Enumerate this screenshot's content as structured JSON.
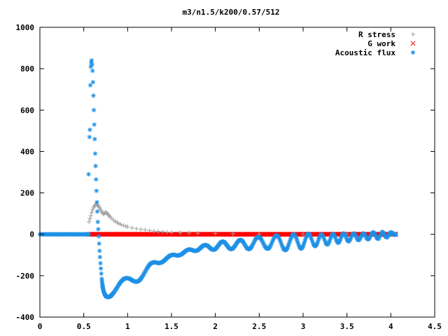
{
  "chart_data": {
    "type": "scatter",
    "title": "m3/n1.5/k200/0.57/512",
    "xlabel": "",
    "ylabel": "",
    "xlim": [
      0,
      4.5
    ],
    "ylim": [
      -400,
      1000
    ],
    "xticks": [
      0,
      0.5,
      1,
      1.5,
      2,
      2.5,
      3,
      3.5,
      4,
      4.5
    ],
    "xtick_labels": [
      "0",
      "0.5",
      "1",
      "1.5",
      "2",
      "2.5",
      "3",
      "3.5",
      "4",
      "4.5"
    ],
    "yticks": [
      -400,
      -200,
      0,
      200,
      400,
      600,
      800,
      1000
    ],
    "ytick_labels": [
      "-400",
      "-200",
      "0",
      "200",
      "400",
      "600",
      "800",
      "1000"
    ],
    "grid": false,
    "legend_position": "top-right",
    "series": [
      {
        "name": "R stress",
        "marker": "plus",
        "color": "#a0a0a0",
        "points": [
          [
            0.56,
            60
          ],
          [
            0.57,
            75
          ],
          [
            0.58,
            90
          ],
          [
            0.59,
            105
          ],
          [
            0.6,
            118
          ],
          [
            0.61,
            128
          ],
          [
            0.62,
            136
          ],
          [
            0.63,
            141
          ],
          [
            0.64,
            144
          ],
          [
            0.65,
            143
          ],
          [
            0.66,
            140
          ],
          [
            0.67,
            135
          ],
          [
            0.68,
            128
          ],
          [
            0.69,
            121
          ],
          [
            0.7,
            113
          ],
          [
            0.71,
            106
          ],
          [
            0.72,
            100
          ],
          [
            0.73,
            98
          ],
          [
            0.74,
            103
          ],
          [
            0.75,
            106
          ],
          [
            0.76,
            104
          ],
          [
            0.77,
            99
          ],
          [
            0.78,
            94
          ],
          [
            0.79,
            89
          ],
          [
            0.8,
            84
          ],
          [
            0.82,
            76
          ],
          [
            0.84,
            68
          ],
          [
            0.86,
            62
          ],
          [
            0.88,
            57
          ],
          [
            0.9,
            52
          ],
          [
            0.92,
            48
          ],
          [
            0.95,
            43
          ],
          [
            0.98,
            39
          ],
          [
            1.0,
            36
          ],
          [
            1.05,
            31
          ],
          [
            1.1,
            27
          ],
          [
            1.15,
            24
          ],
          [
            1.2,
            21
          ],
          [
            1.25,
            18
          ],
          [
            1.3,
            16
          ],
          [
            1.35,
            14
          ],
          [
            1.4,
            12
          ],
          [
            1.45,
            10
          ],
          [
            1.5,
            9
          ],
          [
            1.6,
            7
          ],
          [
            1.7,
            6
          ],
          [
            1.8,
            5
          ],
          [
            2.0,
            4
          ],
          [
            2.2,
            3
          ],
          [
            2.5,
            2
          ],
          [
            3.0,
            1
          ],
          [
            3.5,
            1
          ],
          [
            4.0,
            0
          ]
        ]
      },
      {
        "name": "G work",
        "marker": "cross",
        "color": "#ff0000",
        "x_range": [
          0.56,
          4.06
        ],
        "y": 0
      },
      {
        "name": "Acoustic flux",
        "marker": "star",
        "color": "#1e90e6",
        "baseline": {
          "x_range": [
            0.0,
            0.56
          ],
          "y": 0
        },
        "points": [
          [
            0.555,
            290
          ],
          [
            0.565,
            470
          ],
          [
            0.57,
            505
          ],
          [
            0.575,
            720
          ],
          [
            0.58,
            810
          ],
          [
            0.585,
            830
          ],
          [
            0.59,
            840
          ],
          [
            0.595,
            820
          ],
          [
            0.6,
            790
          ],
          [
            0.605,
            735
          ],
          [
            0.61,
            670
          ],
          [
            0.615,
            600
          ],
          [
            0.62,
            530
          ],
          [
            0.625,
            460
          ],
          [
            0.63,
            390
          ],
          [
            0.635,
            330
          ],
          [
            0.64,
            265
          ],
          [
            0.645,
            210
          ],
          [
            0.65,
            155
          ],
          [
            0.655,
            110
          ],
          [
            0.66,
            60
          ],
          [
            0.665,
            25
          ],
          [
            0.67,
            -10
          ],
          [
            0.675,
            -45
          ],
          [
            0.68,
            -80
          ],
          [
            0.685,
            -110
          ],
          [
            0.69,
            -140
          ],
          [
            0.695,
            -165
          ],
          [
            0.7,
            -190
          ],
          [
            0.705,
            -215
          ],
          [
            0.71,
            -235
          ],
          [
            0.715,
            -252
          ],
          [
            0.72,
            -265
          ],
          [
            0.73,
            -280
          ],
          [
            0.74,
            -290
          ],
          [
            0.75,
            -297
          ],
          [
            0.76,
            -301
          ],
          [
            0.77,
            -303
          ],
          [
            0.78,
            -303
          ],
          [
            0.79,
            -302
          ],
          [
            0.8,
            -300
          ],
          [
            0.81,
            -297
          ],
          [
            0.82,
            -292
          ],
          [
            0.84,
            -283
          ],
          [
            0.86,
            -270
          ],
          [
            0.88,
            -257
          ],
          [
            0.9,
            -243
          ],
          [
            0.92,
            -231
          ],
          [
            0.94,
            -222
          ],
          [
            0.96,
            -215
          ],
          [
            0.98,
            -212
          ],
          [
            1.0,
            -212
          ],
          [
            1.02,
            -214
          ],
          [
            1.04,
            -219
          ],
          [
            1.06,
            -224
          ],
          [
            1.08,
            -228
          ],
          [
            1.1,
            -229
          ],
          [
            1.12,
            -227
          ],
          [
            1.14,
            -220
          ],
          [
            1.16,
            -209
          ],
          [
            1.18,
            -195
          ],
          [
            1.2,
            -180
          ],
          [
            1.22,
            -165
          ],
          [
            1.24,
            -152
          ],
          [
            1.26,
            -142
          ],
          [
            1.28,
            -137
          ],
          [
            1.3,
            -135
          ],
          [
            1.32,
            -136
          ],
          [
            1.34,
            -138
          ],
          [
            1.36,
            -139
          ],
          [
            1.38,
            -137
          ],
          [
            1.4,
            -133
          ],
          [
            1.42,
            -126
          ],
          [
            1.44,
            -118
          ],
          [
            1.46,
            -110
          ],
          [
            1.48,
            -104
          ],
          [
            1.5,
            -100
          ],
          [
            1.52,
            -99
          ],
          [
            1.54,
            -100
          ],
          [
            1.56,
            -102
          ],
          [
            1.58,
            -102
          ],
          [
            1.6,
            -100
          ],
          [
            1.62,
            -95
          ],
          [
            1.64,
            -88
          ],
          [
            1.66,
            -81
          ],
          [
            1.68,
            -76
          ],
          [
            1.7,
            -73
          ],
          [
            1.72,
            -74
          ],
          [
            1.74,
            -77
          ],
          [
            1.76,
            -80
          ],
          [
            1.78,
            -80
          ],
          [
            1.8,
            -77
          ],
          [
            1.82,
            -70
          ],
          [
            1.84,
            -62
          ],
          [
            1.86,
            -55
          ],
          [
            1.88,
            -52
          ],
          [
            1.9,
            -53
          ],
          [
            1.92,
            -58
          ],
          [
            1.94,
            -66
          ],
          [
            1.96,
            -73
          ],
          [
            1.98,
            -75
          ],
          [
            2.0,
            -71
          ],
          [
            2.02,
            -62
          ],
          [
            2.04,
            -50
          ],
          [
            2.06,
            -40
          ],
          [
            2.08,
            -35
          ],
          [
            2.1,
            -37
          ],
          [
            2.12,
            -46
          ],
          [
            2.14,
            -58
          ],
          [
            2.16,
            -68
          ],
          [
            2.18,
            -72
          ],
          [
            2.2,
            -68
          ],
          [
            2.22,
            -58
          ],
          [
            2.24,
            -45
          ],
          [
            2.26,
            -33
          ],
          [
            2.28,
            -27
          ],
          [
            2.3,
            -29
          ],
          [
            2.32,
            -39
          ],
          [
            2.34,
            -54
          ],
          [
            2.36,
            -67
          ],
          [
            2.38,
            -72
          ],
          [
            2.4,
            -68
          ],
          [
            2.42,
            -55
          ],
          [
            2.44,
            -38
          ],
          [
            2.46,
            -22
          ],
          [
            2.48,
            -13
          ],
          [
            2.5,
            -13
          ],
          [
            2.52,
            -22
          ],
          [
            2.54,
            -38
          ],
          [
            2.56,
            -55
          ],
          [
            2.58,
            -67
          ],
          [
            2.6,
            -70
          ],
          [
            2.62,
            -62
          ],
          [
            2.64,
            -45
          ],
          [
            2.66,
            -25
          ],
          [
            2.68,
            -10
          ],
          [
            2.7,
            -5
          ],
          [
            2.72,
            -13
          ],
          [
            2.74,
            -32
          ],
          [
            2.76,
            -55
          ],
          [
            2.78,
            -72
          ],
          [
            2.8,
            -77
          ],
          [
            2.82,
            -67
          ],
          [
            2.84,
            -45
          ],
          [
            2.86,
            -20
          ],
          [
            2.88,
            -3
          ],
          [
            2.9,
            0
          ],
          [
            2.92,
            -15
          ],
          [
            2.94,
            -40
          ],
          [
            2.96,
            -62
          ],
          [
            2.98,
            -70
          ],
          [
            3.0,
            -58
          ],
          [
            3.02,
            -32
          ],
          [
            3.04,
            -8
          ],
          [
            3.06,
            3
          ],
          [
            3.08,
            -5
          ],
          [
            3.1,
            -28
          ],
          [
            3.12,
            -50
          ],
          [
            3.14,
            -58
          ],
          [
            3.16,
            -45
          ],
          [
            3.18,
            -20
          ],
          [
            3.2,
            -2
          ],
          [
            3.22,
            -3
          ],
          [
            3.24,
            -22
          ],
          [
            3.26,
            -43
          ],
          [
            3.28,
            -50
          ],
          [
            3.3,
            -35
          ],
          [
            3.32,
            -10
          ],
          [
            3.34,
            3
          ],
          [
            3.36,
            -8
          ],
          [
            3.38,
            -30
          ],
          [
            3.4,
            -42
          ],
          [
            3.42,
            -30
          ],
          [
            3.44,
            -8
          ],
          [
            3.46,
            5
          ],
          [
            3.48,
            -5
          ],
          [
            3.5,
            -25
          ],
          [
            3.52,
            -35
          ],
          [
            3.54,
            -22
          ],
          [
            3.56,
            -3
          ],
          [
            3.58,
            5
          ],
          [
            3.6,
            -8
          ],
          [
            3.62,
            -25
          ],
          [
            3.64,
            -28
          ],
          [
            3.66,
            -12
          ],
          [
            3.68,
            4
          ],
          [
            3.7,
            2
          ],
          [
            3.72,
            -15
          ],
          [
            3.74,
            -25
          ],
          [
            3.76,
            -15
          ],
          [
            3.78,
            2
          ],
          [
            3.8,
            10
          ],
          [
            3.82,
            0
          ],
          [
            3.84,
            -18
          ],
          [
            3.86,
            -22
          ],
          [
            3.88,
            -5
          ],
          [
            3.9,
            12
          ],
          [
            3.92,
            5
          ],
          [
            3.94,
            -12
          ],
          [
            3.96,
            -15
          ],
          [
            3.98,
            0
          ],
          [
            4.0,
            10
          ],
          [
            4.02,
            5
          ],
          [
            4.04,
            -3
          ],
          [
            4.06,
            0
          ]
        ]
      }
    ]
  }
}
